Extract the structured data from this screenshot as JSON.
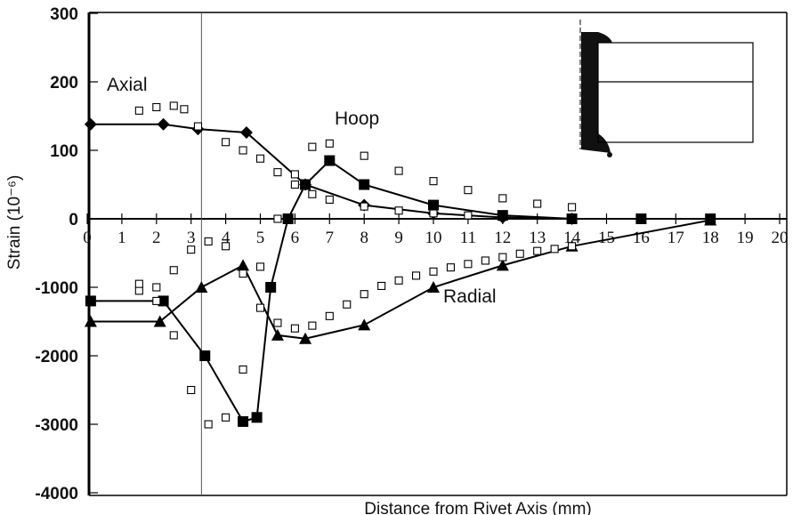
{
  "chart_data": {
    "type": "line",
    "title": "",
    "xlabel": "Distance from Rivet Axis (mm)",
    "ylabel": "Strain (10⁻⁶)",
    "xlim": [
      0,
      20
    ],
    "x_ticks": [
      0,
      1,
      2,
      3,
      4,
      5,
      6,
      7,
      8,
      9,
      10,
      11,
      12,
      13,
      14,
      15,
      16,
      17,
      18,
      19,
      20
    ],
    "y_ticks": [
      300,
      200,
      100,
      0,
      -1000,
      -2000,
      -3000,
      -4000
    ],
    "y_scale": "piecewise: linear 0..300 above zero, linear 0..-4000 below zero",
    "reference_line_x": 3.3,
    "grid": false,
    "legend": "none",
    "series_labels": [
      "Axial",
      "Hoop",
      "Radial"
    ],
    "series": [
      {
        "group": "Axial",
        "style": "solid-line",
        "marker": "diamond",
        "x": [
          0.1,
          2.2,
          3.2,
          4.6,
          6.3,
          8.0,
          10.0,
          12.0,
          14.0
        ],
        "y": [
          138,
          138,
          131,
          126,
          50,
          20,
          8,
          2,
          0
        ]
      },
      {
        "group": "Axial",
        "style": "open-square-markers",
        "x": [
          1.5,
          2.0,
          2.5,
          2.8,
          3.2,
          4.0,
          4.5,
          5.0,
          5.5,
          6.0,
          6.5,
          7.0,
          8.0,
          9.0,
          10.0,
          11.0,
          12.0
        ],
        "y": [
          158,
          163,
          165,
          160,
          135,
          112,
          100,
          88,
          68,
          50,
          36,
          28,
          18,
          12,
          8,
          5,
          3
        ]
      },
      {
        "group": "Hoop",
        "style": "solid-line",
        "marker": "square",
        "x": [
          0.1,
          2.2,
          3.4,
          4.5,
          4.9,
          5.3,
          5.8,
          6.3,
          7.0,
          8.0,
          10.0,
          12.0,
          14.0,
          16.0,
          18.0
        ],
        "y": [
          -1200,
          -1200,
          -2000,
          -2960,
          -2900,
          -1000,
          0,
          50,
          85,
          50,
          20,
          5,
          0,
          0,
          0
        ]
      },
      {
        "group": "Hoop",
        "style": "open-square-markers",
        "x": [
          1.5,
          2.0,
          2.5,
          3.0,
          3.5,
          4.0,
          4.5,
          5.0,
          5.5,
          6.0,
          6.5,
          7.0,
          8.0,
          9.0,
          10.0,
          11.0,
          12.0,
          13.0,
          14.0
        ],
        "y": [
          -1050,
          -1200,
          -1700,
          -2500,
          -3000,
          -2900,
          -2200,
          -700,
          0,
          65,
          105,
          110,
          92,
          70,
          55,
          42,
          30,
          22,
          17
        ]
      },
      {
        "group": "Radial",
        "style": "solid-line",
        "marker": "triangle",
        "x": [
          0.1,
          2.1,
          3.3,
          4.5,
          5.5,
          6.3,
          8.0,
          10.0,
          12.0,
          14.0,
          18.0
        ],
        "y": [
          -1500,
          -1500,
          -1000,
          -680,
          -1700,
          -1750,
          -1550,
          -1000,
          -680,
          -400,
          -20
        ]
      },
      {
        "group": "Radial",
        "style": "open-square-markers",
        "x": [
          1.5,
          2.0,
          2.5,
          3.0,
          3.5,
          4.0,
          4.5,
          5.0,
          5.5,
          6.0,
          6.5,
          7.0,
          7.5,
          8.0,
          8.5,
          9.0,
          9.5,
          10.0,
          10.5,
          11.0,
          11.5,
          12.0,
          12.5,
          13.0,
          13.5,
          14.0
        ],
        "y": [
          -950,
          -1000,
          -750,
          -450,
          -330,
          -400,
          -800,
          -1300,
          -1520,
          -1600,
          -1560,
          -1420,
          -1250,
          -1100,
          -980,
          -900,
          -830,
          -770,
          -710,
          -660,
          -610,
          -560,
          -510,
          -470,
          -440,
          -400
        ]
      }
    ]
  },
  "inset": {
    "description_icon": "rivet-cross-section-schematic"
  }
}
